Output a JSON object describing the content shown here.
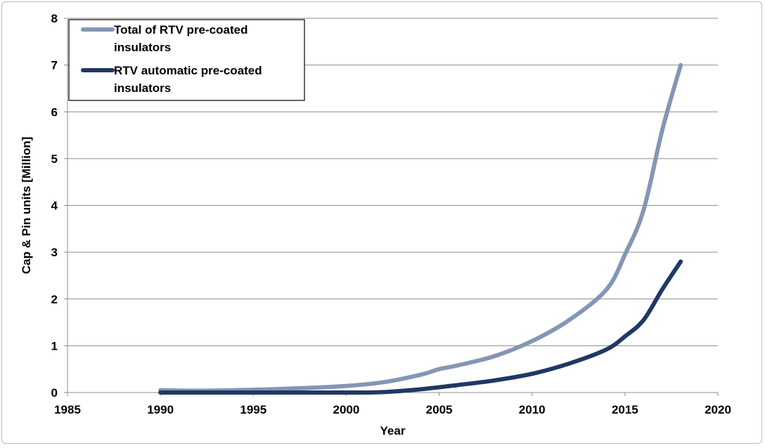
{
  "chart_data": {
    "type": "line",
    "title": "",
    "xlabel": "Year",
    "ylabel": "Cap & Pin units [Million]",
    "xlim": [
      1985,
      2020
    ],
    "ylim": [
      0,
      8
    ],
    "x_ticks": [
      1985,
      1990,
      1995,
      2000,
      2005,
      2010,
      2015,
      2020
    ],
    "y_ticks": [
      0,
      1,
      2,
      3,
      4,
      5,
      6,
      7,
      8
    ],
    "grid": "horizontal",
    "legend_position": "top-left",
    "series": [
      {
        "name": "Total of RTV pre-coated insulators",
        "legend_lines": [
          "Total of RTV pre-coated",
          "insulators"
        ],
        "color": "#8496b6",
        "x": [
          1990,
          1992,
          1994,
          1996,
          1998,
          2000,
          2002,
          2004,
          2005,
          2006,
          2008,
          2010,
          2012,
          2014,
          2015,
          2016,
          2017,
          2018
        ],
        "y": [
          0.05,
          0.04,
          0.05,
          0.07,
          0.1,
          0.14,
          0.22,
          0.38,
          0.5,
          0.58,
          0.78,
          1.1,
          1.55,
          2.2,
          2.95,
          3.9,
          5.6,
          7.0
        ]
      },
      {
        "name": "RTV automatic pre-coated insulators",
        "legend_lines": [
          "RTV automatic pre-coated",
          "insulators"
        ],
        "color": "#1f3864",
        "x": [
          1990,
          1995,
          2000,
          2002,
          2004,
          2006,
          2008,
          2010,
          2012,
          2014,
          2015,
          2016,
          2017,
          2018
        ],
        "y": [
          0.0,
          0.0,
          0.0,
          0.01,
          0.07,
          0.16,
          0.26,
          0.4,
          0.62,
          0.92,
          1.2,
          1.55,
          2.2,
          2.8
        ]
      }
    ]
  }
}
